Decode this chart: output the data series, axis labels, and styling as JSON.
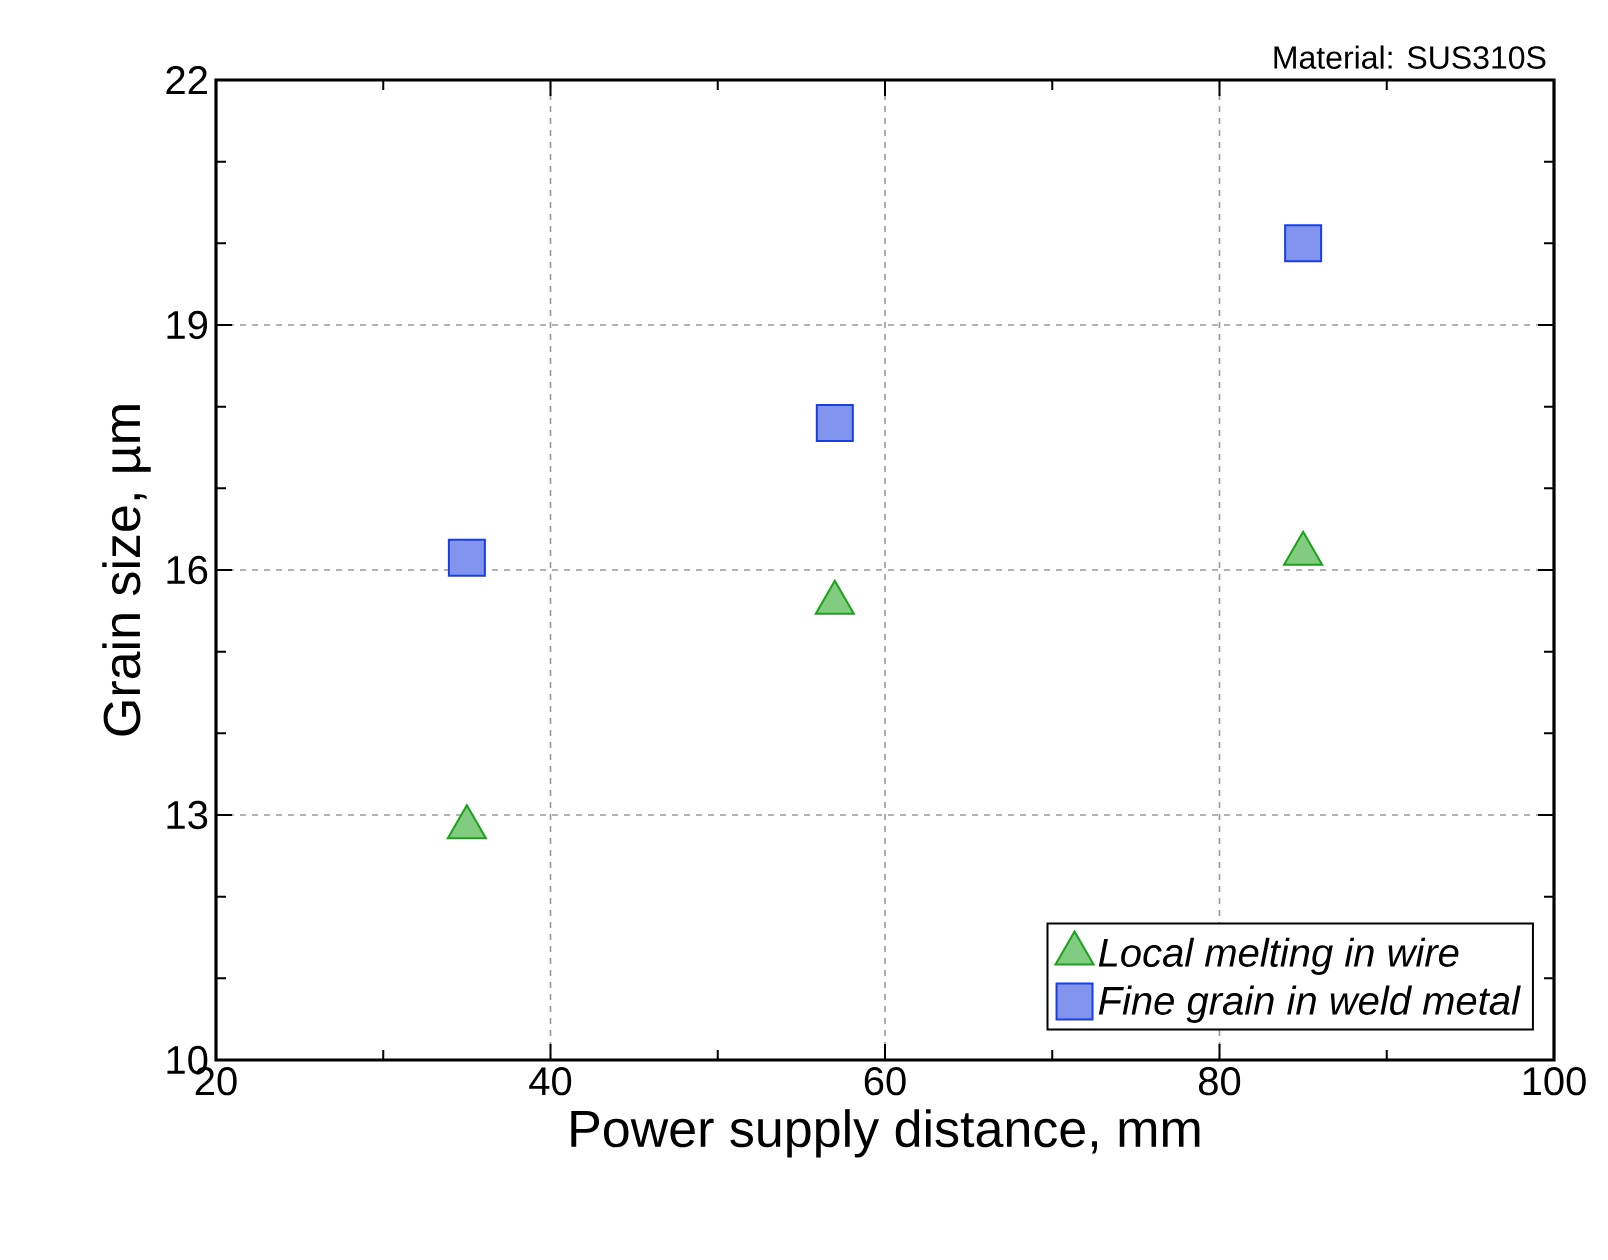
{
  "chart_data": {
    "type": "scatter",
    "xlabel": "Power supply distance, mm",
    "ylabel": "Grain size, µm",
    "annotations": [
      "Material: SUS310S"
    ],
    "xlim": [
      20,
      100
    ],
    "xticks": [
      20,
      40,
      60,
      80,
      100
    ],
    "ylim": [
      10,
      22
    ],
    "yticks": [
      10,
      13,
      16,
      19,
      22
    ],
    "grid": true,
    "legend": "bottom right",
    "series": [
      {
        "name": "*Local melting in wire*",
        "color": "#1aa31a",
        "marker": "triangle",
        "x": [
          35,
          57,
          85
        ],
        "values": [
          12.85,
          15.6,
          16.2
        ]
      },
      {
        "name": "*Fine grain in weld metal*",
        "color": "#1a3fe0",
        "marker": "square",
        "x": [
          35,
          57,
          85
        ],
        "values": [
          16.15,
          17.8,
          20.0
        ]
      }
    ]
  }
}
